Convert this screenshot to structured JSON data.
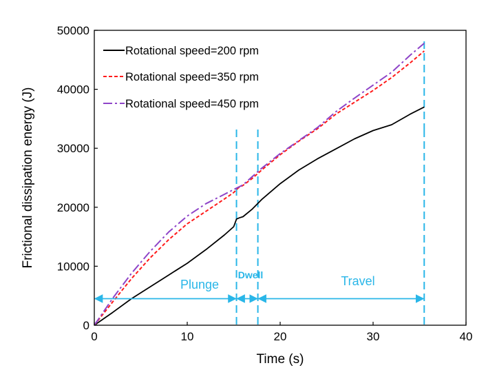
{
  "chart_data": {
    "type": "line",
    "title": "",
    "xlabel": "Time (s)",
    "ylabel": "Frictional dissipation energy (J)",
    "xlim": [
      0,
      40
    ],
    "ylim": [
      0,
      50000
    ],
    "xticks": [
      0,
      10,
      20,
      30,
      40
    ],
    "yticks": [
      0,
      10000,
      20000,
      30000,
      40000,
      50000
    ],
    "grid": false,
    "legend_position": "top-left",
    "series": [
      {
        "name": "Rotational speed=200 rpm",
        "color": "#000000",
        "style": "solid",
        "x": [
          0,
          2,
          4,
          6,
          8,
          10,
          12,
          14,
          15,
          15.3,
          15.6,
          16,
          17,
          18,
          20,
          22,
          24,
          26,
          28,
          30,
          32,
          34,
          35.5
        ],
        "y": [
          0,
          2200,
          4500,
          6500,
          8500,
          10500,
          12800,
          15300,
          16700,
          18000,
          18200,
          18400,
          19700,
          21300,
          24000,
          26300,
          28200,
          29900,
          31600,
          33000,
          34000,
          35800,
          37000
        ]
      },
      {
        "name": "Rotational speed=350 rpm",
        "color": "#ff1a1a",
        "style": "dashed",
        "x": [
          0,
          2,
          4,
          6,
          8,
          10,
          12,
          14,
          15,
          15.5,
          16,
          17,
          18,
          20,
          22,
          24,
          26,
          28,
          30,
          32,
          34,
          35.5
        ],
        "y": [
          0,
          4000,
          7900,
          11400,
          14500,
          17200,
          19300,
          21400,
          22500,
          23300,
          23700,
          24900,
          26300,
          28900,
          31200,
          33300,
          35800,
          37800,
          39800,
          42000,
          44500,
          46500
        ]
      },
      {
        "name": "Rotational speed=450 rpm",
        "color": "#8e44c8",
        "style": "dashdot",
        "x": [
          0,
          2,
          4,
          6,
          8,
          10,
          12,
          14,
          15,
          15.5,
          16,
          17,
          18,
          20,
          22,
          24,
          26,
          28,
          30,
          32,
          34,
          35.5
        ],
        "y": [
          0,
          4600,
          8800,
          12500,
          15800,
          18500,
          20600,
          22200,
          23000,
          23400,
          23800,
          25200,
          26600,
          29100,
          31300,
          33500,
          36200,
          38500,
          40700,
          42900,
          45800,
          47800
        ]
      }
    ],
    "phase_lines": [
      15.3,
      17.6,
      35.5
    ],
    "phases": [
      {
        "label": "Plunge",
        "from": 0,
        "to": 15.3
      },
      {
        "label": "Dwell",
        "from": 15.3,
        "to": 17.6
      },
      {
        "label": "Travel",
        "from": 17.6,
        "to": 35.5
      }
    ],
    "phase_arrow_level": 4500,
    "phase_color": "#29b6e8"
  }
}
